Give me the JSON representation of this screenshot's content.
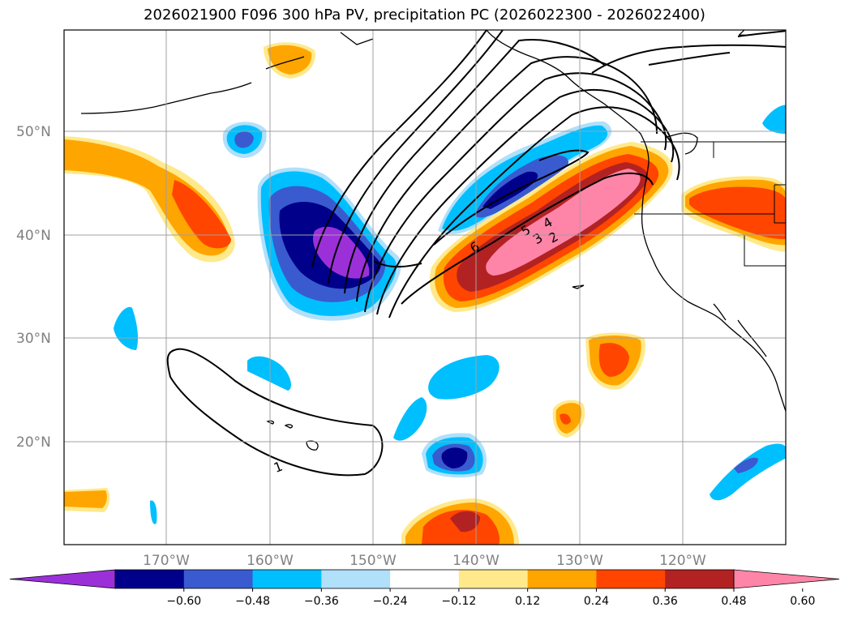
{
  "title": "2026021900 F096 300 hPa PV, precipitation PC (2026022300 - 2026022400)",
  "lat_labels": [
    "50°N",
    "40°N",
    "30°N",
    "20°N"
  ],
  "lon_labels": [
    "170°W",
    "160°W",
    "150°W",
    "140°W",
    "130°W",
    "120°W"
  ],
  "colorbar": {
    "tick_labels": [
      "−0.60",
      "−0.48",
      "−0.36",
      "−0.24",
      "−0.12",
      "0.12",
      "0.24",
      "0.36",
      "0.48",
      "0.60"
    ],
    "colors": [
      "#9b30d9",
      "#00008b",
      "#3a5bd0",
      "#00bfff",
      "#b0e0fa",
      "#ffffff",
      "#ffe98a",
      "#ffa500",
      "#ff4500",
      "#b22222",
      "#ff85a8"
    ]
  },
  "contour_labels": [
    "1",
    "2",
    "3",
    "4",
    "5",
    "6"
  ]
}
